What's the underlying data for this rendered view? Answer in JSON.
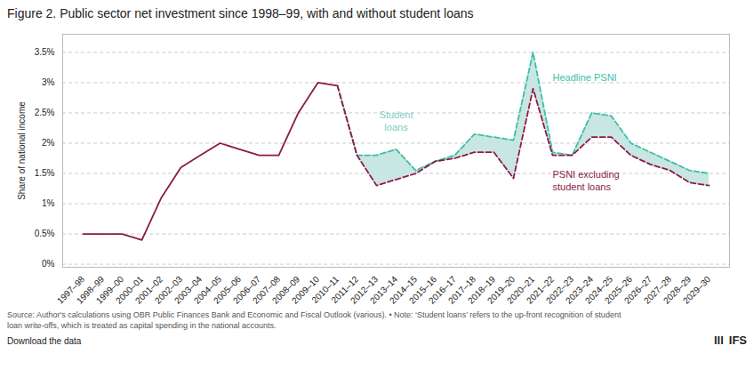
{
  "chart_data": {
    "type": "line",
    "title": "Figure 2. Public sector net investment since 1998–99, with and without student loans",
    "ylabel": "Share of national income",
    "caption": "Source: Author's calculations using OBR Public Finances Bank and Economic and Fiscal Outlook (various). • Note: ‘Student loans’ refers to the up-front recognition of student\nloan write-offs, which is treated as capital spending in the national accounts.",
    "footer": [
      "Download the data",
      "lll",
      "IFS"
    ],
    "categories": [
      "1997–98",
      "1998–99",
      "1999–00",
      "2000–01",
      "2001–02",
      "2002–03",
      "2003–04",
      "2004–05",
      "2005–06",
      "2006–07",
      "2007–08",
      "2008–09",
      "2009–10",
      "2010–11",
      "2011–12",
      "2012–13",
      "2013–14",
      "2014–15",
      "2015–16",
      "2016–17",
      "2017–18",
      "2018–19",
      "2019–20",
      "2020–21",
      "2021–22",
      "2022–23",
      "2023–24",
      "2024–25",
      "2025–26",
      "2026–27",
      "2027–28",
      "2028–29",
      "2029–30"
    ],
    "series": [
      {
        "type": "area",
        "color": "#c8e6e2",
        "values": [
          null,
          null,
          null,
          null,
          null,
          null,
          null,
          null,
          null,
          null,
          null,
          null,
          null,
          2.95,
          1.8,
          1.8,
          1.9,
          1.55,
          1.7,
          1.8,
          2.15,
          2.1,
          2.05,
          3.5,
          1.85,
          1.8,
          2.5,
          2.45,
          2.0,
          1.85,
          1.7,
          1.55,
          1.5
        ],
        "base": [
          null,
          null,
          null,
          null,
          null,
          null,
          null,
          null,
          null,
          null,
          null,
          null,
          null,
          2.95,
          1.8,
          1.3,
          1.4,
          1.5,
          1.7,
          1.75,
          1.85,
          1.85,
          1.42,
          2.9,
          1.8,
          1.8,
          2.1,
          2.1,
          1.8,
          1.65,
          1.55,
          1.35,
          1.3
        ]
      },
      {
        "type": "line",
        "color": "#8b1a4a",
        "line_style": "solid",
        "values": [
          0.5,
          0.5,
          0.5,
          0.4,
          1.1,
          1.6,
          1.8,
          2.0,
          1.9,
          1.8,
          1.8,
          2.5,
          3.0,
          2.95,
          null,
          null,
          null,
          null,
          null,
          null,
          null,
          null,
          null,
          null,
          null,
          null,
          null,
          null,
          null,
          null,
          null,
          null,
          null
        ]
      },
      {
        "type": "line",
        "color": "#3dbfa8",
        "line_style": "dashed",
        "values": [
          null,
          null,
          null,
          null,
          null,
          null,
          null,
          null,
          null,
          null,
          null,
          null,
          null,
          2.95,
          1.8,
          1.8,
          1.9,
          1.55,
          1.7,
          1.8,
          2.15,
          2.1,
          2.05,
          3.5,
          1.85,
          1.8,
          2.5,
          2.45,
          2.0,
          1.85,
          1.7,
          1.55,
          1.5
        ]
      },
      {
        "type": "line",
        "color": "#8b1a4a",
        "line_style": "dashed",
        "values": [
          null,
          null,
          null,
          null,
          null,
          null,
          null,
          null,
          null,
          null,
          null,
          null,
          null,
          2.95,
          1.8,
          1.3,
          1.4,
          1.5,
          1.7,
          1.75,
          1.85,
          1.85,
          1.42,
          2.9,
          1.8,
          1.8,
          2.1,
          2.1,
          1.8,
          1.65,
          1.55,
          1.35,
          1.3
        ]
      }
    ],
    "annotations": [
      {
        "text": "Student\nloans",
        "x": "2013–14",
        "y": 2.2,
        "color": "#7ecdc5"
      },
      {
        "text": "Headline PSNI",
        "x": "2021–22",
        "y": 3.1,
        "color": "#3dbfa8"
      },
      {
        "text": "PSNI excluding\nstudent loans",
        "x": "2021–22",
        "y": 1.58,
        "color": "#8b1a4a"
      }
    ],
    "ylim": [
      -0.05,
      3.8
    ],
    "yticks": [
      {
        "value": 0.0,
        "label": "0%"
      },
      {
        "value": 0.5,
        "label": "0.5%"
      },
      {
        "value": 1.0,
        "label": "1%"
      },
      {
        "value": 1.5,
        "label": "1.5%"
      },
      {
        "value": 2.0,
        "label": "2%"
      },
      {
        "value": 2.5,
        "label": "2.5%"
      },
      {
        "value": 3.0,
        "label": "3%"
      },
      {
        "value": 3.5,
        "label": "3.5%"
      }
    ],
    "grid": true
  }
}
